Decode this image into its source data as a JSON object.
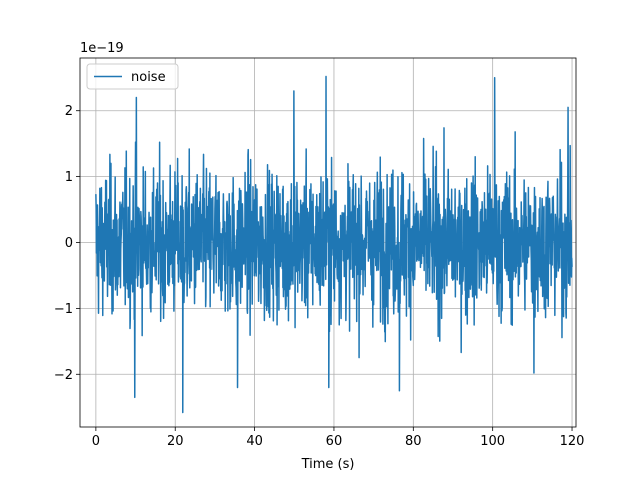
{
  "chart_data": {
    "type": "line",
    "title": "",
    "xlabel": "Time (s)",
    "ylabel": "",
    "offset_label": "1e−19",
    "xlim": [
      -4,
      121
    ],
    "ylim": [
      -2.8,
      2.8
    ],
    "xticks": [
      0,
      20,
      40,
      60,
      80,
      100,
      120
    ],
    "xtick_labels": [
      "0",
      "20",
      "40",
      "60",
      "80",
      "100",
      "120"
    ],
    "yticks": [
      -2,
      -1,
      0,
      1,
      2
    ],
    "ytick_labels": [
      "−2",
      "−1",
      "0",
      "1",
      "2"
    ],
    "grid": true,
    "legend_position": "upper-left",
    "series": [
      {
        "name": "noise",
        "color": "#1f77b4",
        "x_start": 0,
        "x_end": 120,
        "amplitude_note": "random noise, std ~0.8, range ~[-2.6, 2.5] (x1e-19)",
        "extremes": [
          {
            "x": 9.8,
            "y": -2.35
          },
          {
            "x": 10.2,
            "y": 2.2
          },
          {
            "x": 21.9,
            "y": -2.58
          },
          {
            "x": 35.7,
            "y": -2.2
          },
          {
            "x": 49.9,
            "y": 2.3
          },
          {
            "x": 58.0,
            "y": 2.52
          },
          {
            "x": 58.7,
            "y": -2.2
          },
          {
            "x": 76.5,
            "y": -2.25
          },
          {
            "x": 100.5,
            "y": 2.5
          },
          {
            "x": 110.4,
            "y": -1.98
          },
          {
            "x": 119.0,
            "y": 2.05
          }
        ]
      }
    ]
  }
}
